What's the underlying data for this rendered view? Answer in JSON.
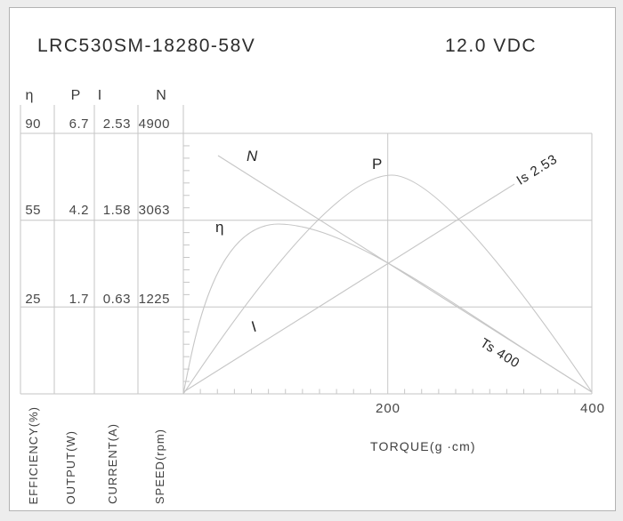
{
  "header": {
    "model": "LRC530SM-18280-58V",
    "voltage": "12.0 VDC"
  },
  "table": {
    "col_headers": [
      "η",
      "P",
      "I",
      "N"
    ],
    "rows": [
      [
        "90",
        "6.7",
        "2.53",
        "4900"
      ],
      [
        "55",
        "4.2",
        "1.58",
        "3063"
      ],
      [
        "25",
        "1.7",
        "0.63",
        "1225"
      ]
    ],
    "axis_titles": [
      "EFFICIENCY(%)",
      "OUTPUT(W)",
      "CURRENT(A)",
      "SPEED(rpm)"
    ]
  },
  "axis": {
    "x_title": "TORQUE(g ∙cm)",
    "x_ticks": [
      "200",
      "400"
    ]
  },
  "curves": {
    "speed_label": "N",
    "output_label": "P",
    "efficiency_label": "η",
    "current_label": "I",
    "stall_current_label": "Is 2.53",
    "stall_torque_label": "Ts 400"
  },
  "colors": {
    "page_bg": "#ededed",
    "figure_bg": "#ffffff",
    "frame_border": "#b3b3b3",
    "grid_line": "#c6c6c6",
    "curve_line": "#c6c6c6",
    "text": "#3c3c3c"
  },
  "chart_data": {
    "type": "line",
    "title": "LRC530SM-18280-58V motor performance at 12.0 VDC",
    "xlabel": "TORQUE(g ∙cm)",
    "x_range": [
      0,
      400
    ],
    "x_ticks": [
      200,
      400
    ],
    "grid": true,
    "legend_position": "inline-curve-labels",
    "y_axes": [
      {
        "symbol": "η",
        "name": "EFFICIENCY(%)",
        "scale_row_values": [
          90,
          55,
          25
        ]
      },
      {
        "symbol": "P",
        "name": "OUTPUT(W)",
        "scale_row_values": [
          6.7,
          4.2,
          1.7
        ]
      },
      {
        "symbol": "I",
        "name": "CURRENT(A)",
        "scale_row_values": [
          2.53,
          1.58,
          0.63
        ]
      },
      {
        "symbol": "N",
        "name": "SPEED(rpm)",
        "scale_row_values": [
          4900,
          3063,
          1225
        ]
      }
    ],
    "series": [
      {
        "name": "N",
        "quantity": "speed_rpm",
        "points": [
          [
            0,
            4900
          ],
          [
            400,
            0
          ]
        ]
      },
      {
        "name": "I",
        "quantity": "current_A",
        "points": [
          [
            0,
            0
          ],
          [
            400,
            2.53
          ]
        ]
      },
      {
        "name": "P",
        "quantity": "output_W",
        "points": [
          [
            0,
            0
          ],
          [
            100,
            3.9
          ],
          [
            200,
            5.5
          ],
          [
            300,
            4.0
          ],
          [
            400,
            0
          ]
        ]
      },
      {
        "name": "η",
        "quantity": "efficiency_pct",
        "points": [
          [
            0,
            0
          ],
          [
            50,
            47
          ],
          [
            93,
            53
          ],
          [
            200,
            40
          ],
          [
            300,
            22
          ],
          [
            400,
            0
          ]
        ]
      }
    ],
    "annotations": [
      {
        "text": "Is 2.53",
        "meaning": "stall current (A)"
      },
      {
        "text": "Ts 400",
        "meaning": "stall torque (g·cm)"
      }
    ]
  }
}
